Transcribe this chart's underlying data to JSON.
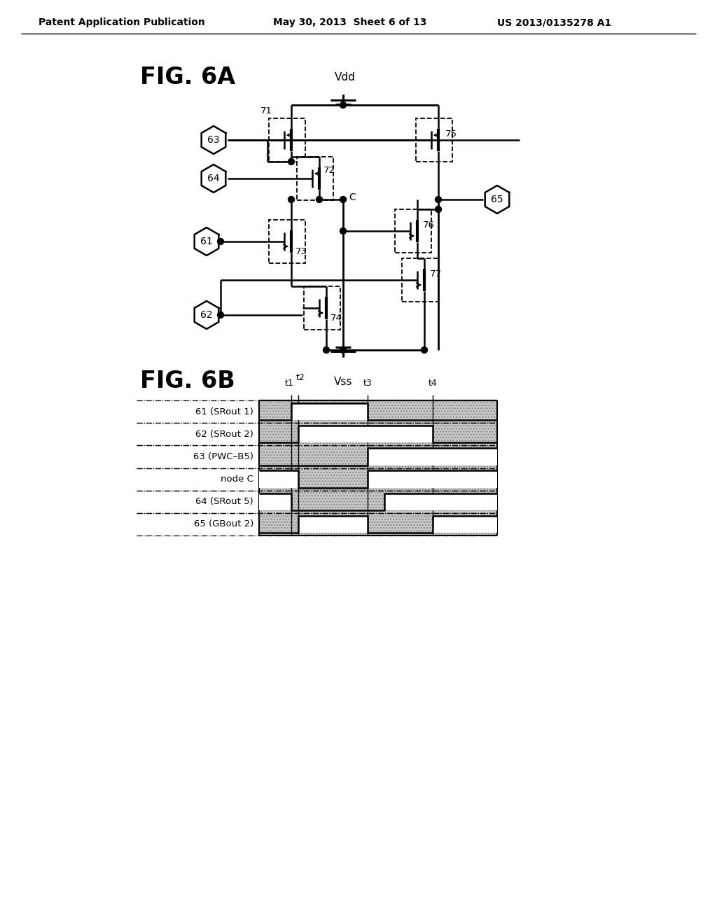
{
  "header_left": "Patent Application Publication",
  "header_mid": "May 30, 2013  Sheet 6 of 13",
  "header_right": "US 2013/0135278 A1",
  "fig6a_label": "FIG. 6A",
  "fig6b_label": "FIG. 6B",
  "vdd_label": "Vdd",
  "vss_label": "Vss",
  "node_c_label": "C",
  "signal_labels": [
    "61 (SRout 1)",
    "62 (SRout 2)",
    "63 (PWC–B5)",
    "node C",
    "64 (SRout 5)",
    "65 (GBout 2)"
  ],
  "time_labels": [
    "t1",
    "t2",
    "t3",
    "t4"
  ],
  "bg_color": "#ffffff"
}
